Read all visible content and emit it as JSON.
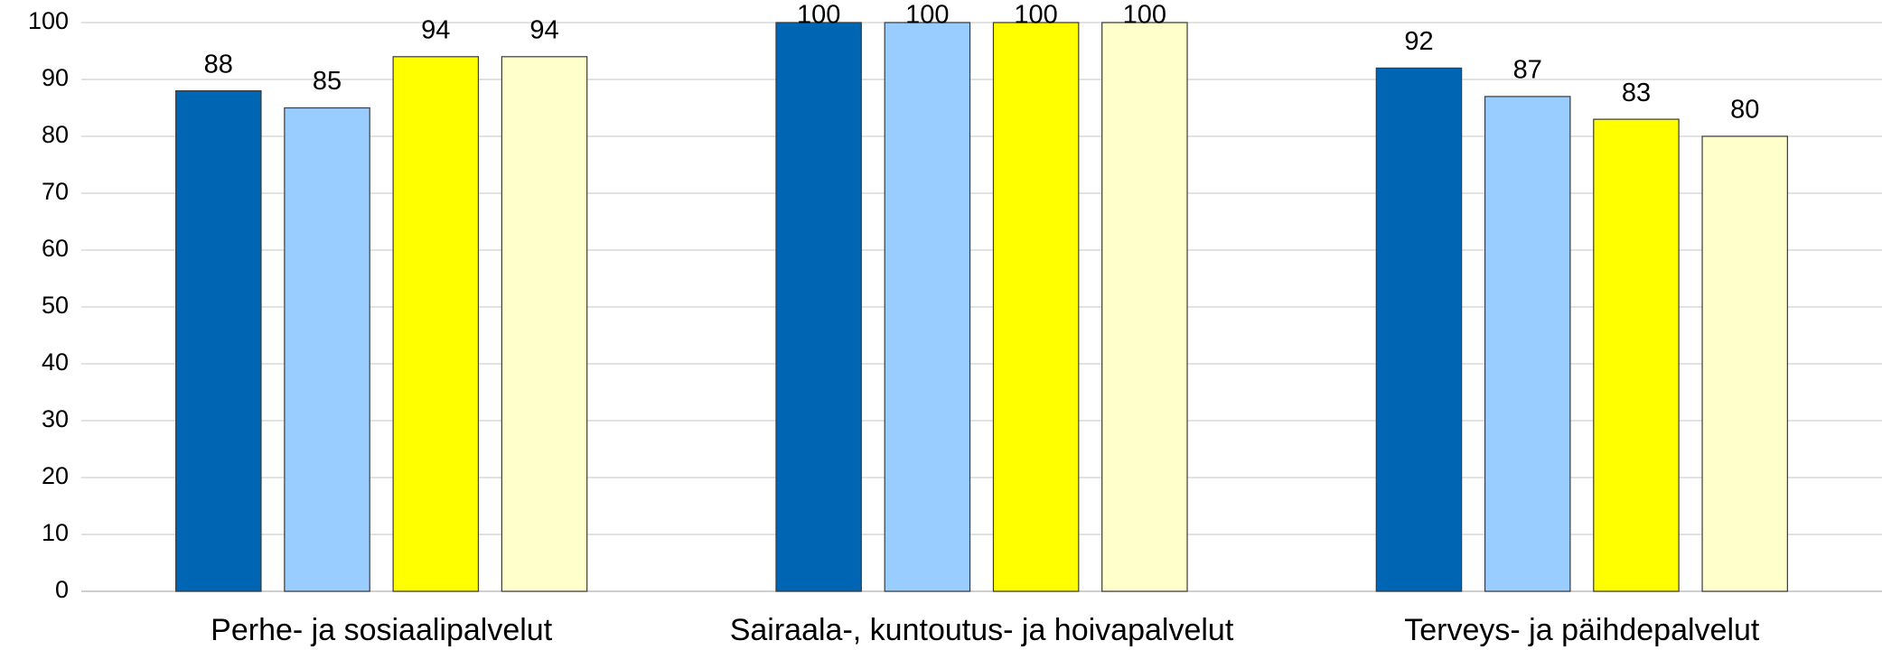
{
  "chart_data": {
    "type": "bar",
    "categories": [
      "Perhe- ja sosiaalipalvelut",
      "Sairaala-, kuntoutus- ja hoivapalvelut",
      "Terveys- ja päihdepalvelut"
    ],
    "series": [
      {
        "color": "#0066b3",
        "values": [
          88,
          100,
          92
        ]
      },
      {
        "color": "#99ccff",
        "values": [
          85,
          100,
          87
        ]
      },
      {
        "color": "#ffff00",
        "values": [
          94,
          100,
          83
        ]
      },
      {
        "color": "#ffffcc",
        "values": [
          94,
          100,
          80
        ]
      }
    ],
    "ylim": [
      0,
      100
    ],
    "yticks": [
      0,
      10,
      20,
      30,
      40,
      50,
      60,
      70,
      80,
      90,
      100
    ],
    "grid": true
  }
}
